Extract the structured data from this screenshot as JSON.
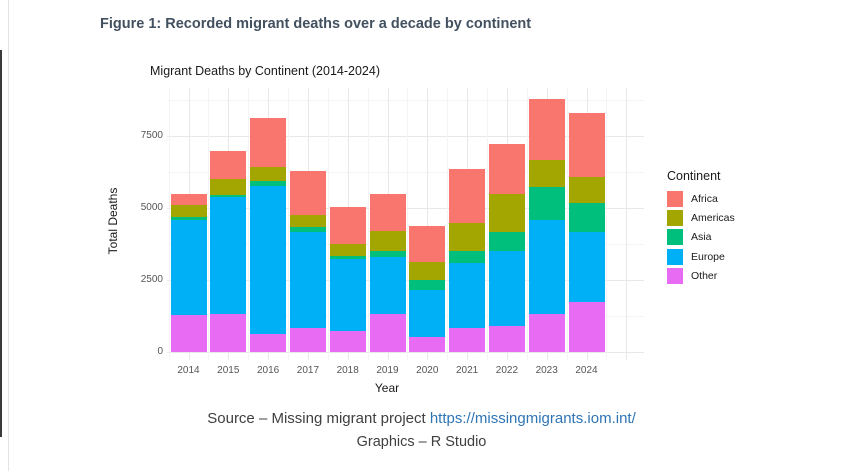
{
  "figure_caption": "Figure 1: Recorded migrant deaths over a decade by continent",
  "source": {
    "prefix": "Source – Missing migrant project ",
    "link_text": "https://missingmigrants.iom.int/",
    "graphics": "Graphics – R Studio"
  },
  "chart_data": {
    "type": "bar",
    "stacked": true,
    "title": "Migrant Deaths by Continent (2014-2024)",
    "xlabel": "Year",
    "ylabel": "Total Deaths",
    "legend_title": "Continent",
    "legend_position": "right",
    "grid": true,
    "categories": [
      "2014",
      "2015",
      "2016",
      "2017",
      "2018",
      "2019",
      "2020",
      "2021",
      "2022",
      "2023",
      "2024"
    ],
    "yticks": [
      0,
      2500,
      5000,
      7500
    ],
    "ylim": [
      0,
      9200
    ],
    "stack_order_bottom_to_top": [
      "Other",
      "Europe",
      "Asia",
      "Americas",
      "Africa"
    ],
    "series": [
      {
        "name": "Africa",
        "color": "#F8766D",
        "values": [
          375,
          975,
          1685,
          1530,
          1280,
          1280,
          1245,
          1860,
          1740,
          2115,
          2230
        ]
      },
      {
        "name": "Americas",
        "color": "#A3A500",
        "values": [
          430,
          555,
          520,
          410,
          420,
          695,
          635,
          985,
          1300,
          965,
          925
        ]
      },
      {
        "name": "Asia",
        "color": "#00BF7D",
        "values": [
          90,
          80,
          175,
          175,
          115,
          230,
          350,
          405,
          675,
          1125,
          985
        ]
      },
      {
        "name": "Europe",
        "color": "#00B0F6",
        "values": [
          3310,
          4060,
          5140,
          3340,
          2500,
          1975,
          1630,
          2285,
          2610,
          3275,
          2440
        ]
      },
      {
        "name": "Other",
        "color": "#E76BF3",
        "values": [
          1280,
          1320,
          610,
          840,
          720,
          1310,
          520,
          815,
          895,
          1315,
          1740
        ]
      }
    ]
  }
}
